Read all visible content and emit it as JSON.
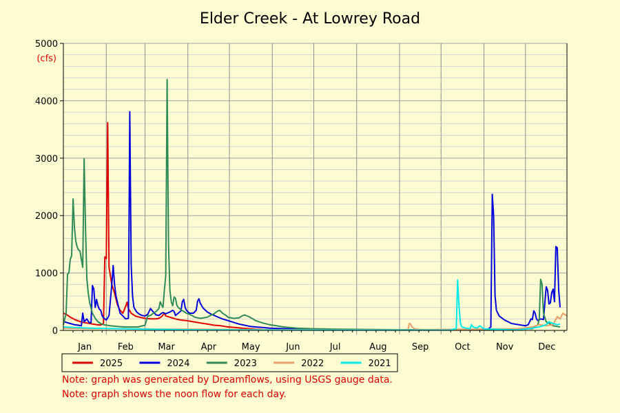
{
  "chart_data": {
    "type": "line",
    "title": "Elder Creek - At Lowrey Road",
    "ylabel": "(cfs)",
    "ylim": [
      0,
      5000
    ],
    "yticks": [
      0,
      1000,
      2000,
      3000,
      4000,
      5000
    ],
    "xlim": [
      1,
      365
    ],
    "months": [
      "Jan",
      "Feb",
      "Mar",
      "Apr",
      "May",
      "Jun",
      "Jul",
      "Aug",
      "Sep",
      "Oct",
      "Nov",
      "Dec"
    ],
    "grid": true,
    "legend_position": "bottom",
    "series": [
      {
        "name": "2025",
        "color": "#e00000",
        "points": [
          [
            1,
            300
          ],
          [
            3,
            280
          ],
          [
            6,
            230
          ],
          [
            10,
            180
          ],
          [
            15,
            140
          ],
          [
            20,
            120
          ],
          [
            25,
            100
          ],
          [
            28,
            95
          ],
          [
            30,
            120
          ],
          [
            31,
            1280
          ],
          [
            32,
            1250
          ],
          [
            33,
            3620
          ],
          [
            34,
            1100
          ],
          [
            36,
            800
          ],
          [
            38,
            650
          ],
          [
            40,
            450
          ],
          [
            42,
            350
          ],
          [
            44,
            300
          ],
          [
            46,
            420
          ],
          [
            47,
            490
          ],
          [
            48,
            380
          ],
          [
            50,
            300
          ],
          [
            53,
            250
          ],
          [
            56,
            230
          ],
          [
            60,
            210
          ],
          [
            64,
            200
          ],
          [
            68,
            200
          ],
          [
            70,
            210
          ],
          [
            72,
            240
          ],
          [
            74,
            300
          ],
          [
            75,
            250
          ],
          [
            78,
            230
          ],
          [
            82,
            200
          ],
          [
            86,
            180
          ],
          [
            90,
            170
          ],
          [
            95,
            150
          ],
          [
            100,
            130
          ],
          [
            105,
            110
          ],
          [
            110,
            90
          ],
          [
            115,
            80
          ],
          [
            120,
            60
          ],
          [
            125,
            50
          ],
          [
            130,
            40
          ],
          [
            135,
            30
          ],
          [
            140,
            20
          ],
          [
            145,
            15
          ]
        ]
      },
      {
        "name": "2024",
        "color": "#0000dd",
        "points": [
          [
            1,
            160
          ],
          [
            3,
            140
          ],
          [
            6,
            120
          ],
          [
            9,
            100
          ],
          [
            12,
            90
          ],
          [
            14,
            80
          ],
          [
            15,
            300
          ],
          [
            16,
            150
          ],
          [
            18,
            200
          ],
          [
            19,
            160
          ],
          [
            20,
            130
          ],
          [
            21,
            140
          ],
          [
            22,
            780
          ],
          [
            23,
            720
          ],
          [
            24,
            400
          ],
          [
            25,
            540
          ],
          [
            26,
            430
          ],
          [
            27,
            370
          ],
          [
            28,
            350
          ],
          [
            29,
            260
          ],
          [
            30,
            220
          ],
          [
            31,
            200
          ],
          [
            32,
            180
          ],
          [
            33,
            220
          ],
          [
            34,
            260
          ],
          [
            36,
            800
          ],
          [
            37,
            1130
          ],
          [
            38,
            800
          ],
          [
            39,
            600
          ],
          [
            40,
            500
          ],
          [
            42,
            300
          ],
          [
            44,
            250
          ],
          [
            46,
            200
          ],
          [
            48,
            210
          ],
          [
            49,
            3810
          ],
          [
            50,
            1150
          ],
          [
            51,
            600
          ],
          [
            52,
            400
          ],
          [
            54,
            320
          ],
          [
            56,
            280
          ],
          [
            58,
            260
          ],
          [
            60,
            250
          ],
          [
            62,
            280
          ],
          [
            64,
            380
          ],
          [
            65,
            350
          ],
          [
            66,
            320
          ],
          [
            68,
            270
          ],
          [
            70,
            260
          ],
          [
            72,
            300
          ],
          [
            73,
            310
          ],
          [
            75,
            290
          ],
          [
            78,
            320
          ],
          [
            80,
            350
          ],
          [
            81,
            330
          ],
          [
            82,
            260
          ],
          [
            84,
            300
          ],
          [
            86,
            340
          ],
          [
            87,
            500
          ],
          [
            88,
            540
          ],
          [
            89,
            400
          ],
          [
            90,
            350
          ],
          [
            92,
            300
          ],
          [
            95,
            300
          ],
          [
            97,
            350
          ],
          [
            98,
            510
          ],
          [
            99,
            550
          ],
          [
            100,
            470
          ],
          [
            102,
            390
          ],
          [
            105,
            320
          ],
          [
            108,
            280
          ],
          [
            112,
            240
          ],
          [
            116,
            200
          ],
          [
            120,
            170
          ],
          [
            124,
            140
          ],
          [
            128,
            110
          ],
          [
            132,
            90
          ],
          [
            136,
            70
          ],
          [
            140,
            60
          ],
          [
            145,
            50
          ],
          [
            150,
            40
          ],
          [
            160,
            30
          ],
          [
            170,
            25
          ],
          [
            180,
            20
          ],
          [
            190,
            15
          ],
          [
            200,
            12
          ],
          [
            220,
            10
          ],
          [
            240,
            8
          ],
          [
            260,
            6
          ],
          [
            280,
            6
          ],
          [
            295,
            8
          ],
          [
            300,
            10
          ],
          [
            305,
            15
          ],
          [
            308,
            20
          ],
          [
            310,
            60
          ],
          [
            311,
            2370
          ],
          [
            312,
            1980
          ],
          [
            313,
            600
          ],
          [
            314,
            350
          ],
          [
            316,
            250
          ],
          [
            320,
            180
          ],
          [
            325,
            120
          ],
          [
            330,
            100
          ],
          [
            335,
            80
          ],
          [
            337,
            100
          ],
          [
            339,
            200
          ],
          [
            340,
            190
          ],
          [
            341,
            340
          ],
          [
            342,
            300
          ],
          [
            343,
            200
          ],
          [
            344,
            170
          ],
          [
            346,
            200
          ],
          [
            348,
            190
          ],
          [
            350,
            760
          ],
          [
            351,
            700
          ],
          [
            352,
            460
          ],
          [
            353,
            480
          ],
          [
            354,
            660
          ],
          [
            355,
            720
          ],
          [
            356,
            500
          ],
          [
            357,
            1460
          ],
          [
            358,
            1440
          ],
          [
            359,
            700
          ],
          [
            360,
            400
          ]
        ]
      },
      {
        "name": "2023",
        "color": "#2e8b57",
        "points": [
          [
            1,
            100
          ],
          [
            2,
            200
          ],
          [
            3,
            300
          ],
          [
            4,
            980
          ],
          [
            5,
            1000
          ],
          [
            6,
            1240
          ],
          [
            7,
            1300
          ],
          [
            8,
            2290
          ],
          [
            9,
            1780
          ],
          [
            10,
            1550
          ],
          [
            11,
            1450
          ],
          [
            12,
            1400
          ],
          [
            13,
            1380
          ],
          [
            14,
            1240
          ],
          [
            15,
            1100
          ],
          [
            16,
            2990
          ],
          [
            17,
            1800
          ],
          [
            18,
            900
          ],
          [
            19,
            650
          ],
          [
            20,
            480
          ],
          [
            22,
            300
          ],
          [
            24,
            210
          ],
          [
            26,
            150
          ],
          [
            28,
            120
          ],
          [
            30,
            100
          ],
          [
            35,
            80
          ],
          [
            40,
            70
          ],
          [
            45,
            60
          ],
          [
            50,
            60
          ],
          [
            55,
            60
          ],
          [
            60,
            90
          ],
          [
            62,
            250
          ],
          [
            64,
            260
          ],
          [
            66,
            300
          ],
          [
            68,
            330
          ],
          [
            70,
            380
          ],
          [
            71,
            500
          ],
          [
            72,
            440
          ],
          [
            73,
            400
          ],
          [
            74,
            700
          ],
          [
            75,
            950
          ],
          [
            76,
            4370
          ],
          [
            77,
            1500
          ],
          [
            78,
            700
          ],
          [
            79,
            500
          ],
          [
            80,
            430
          ],
          [
            81,
            580
          ],
          [
            82,
            560
          ],
          [
            83,
            440
          ],
          [
            84,
            400
          ],
          [
            85,
            380
          ],
          [
            86,
            360
          ],
          [
            88,
            330
          ],
          [
            90,
            300
          ],
          [
            92,
            280
          ],
          [
            94,
            260
          ],
          [
            96,
            230
          ],
          [
            100,
            210
          ],
          [
            105,
            230
          ],
          [
            108,
            270
          ],
          [
            110,
            290
          ],
          [
            112,
            330
          ],
          [
            114,
            350
          ],
          [
            116,
            300
          ],
          [
            118,
            270
          ],
          [
            120,
            230
          ],
          [
            124,
            210
          ],
          [
            128,
            220
          ],
          [
            130,
            250
          ],
          [
            132,
            270
          ],
          [
            135,
            240
          ],
          [
            138,
            200
          ],
          [
            140,
            170
          ],
          [
            145,
            130
          ],
          [
            150,
            100
          ],
          [
            155,
            80
          ],
          [
            160,
            60
          ],
          [
            170,
            40
          ],
          [
            180,
            30
          ],
          [
            200,
            20
          ],
          [
            230,
            15
          ],
          [
            260,
            10
          ],
          [
            290,
            10
          ],
          [
            320,
            20
          ],
          [
            340,
            30
          ],
          [
            344,
            100
          ],
          [
            345,
            200
          ],
          [
            346,
            890
          ],
          [
            347,
            800
          ],
          [
            348,
            300
          ],
          [
            350,
            150
          ],
          [
            355,
            80
          ],
          [
            360,
            60
          ]
        ]
      },
      {
        "name": "2022",
        "color": "#e8a06a",
        "points": [
          [
            1,
            40
          ],
          [
            20,
            30
          ],
          [
            40,
            30
          ],
          [
            60,
            25
          ],
          [
            80,
            20
          ],
          [
            100,
            20
          ],
          [
            130,
            15
          ],
          [
            160,
            12
          ],
          [
            200,
            10
          ],
          [
            240,
            8
          ],
          [
            250,
            8
          ],
          [
            251,
            120
          ],
          [
            252,
            110
          ],
          [
            253,
            60
          ],
          [
            255,
            25
          ],
          [
            260,
            15
          ],
          [
            300,
            20
          ],
          [
            330,
            30
          ],
          [
            340,
            60
          ],
          [
            345,
            100
          ],
          [
            350,
            80
          ],
          [
            355,
            100
          ],
          [
            358,
            240
          ],
          [
            360,
            200
          ],
          [
            362,
            300
          ],
          [
            365,
            250
          ]
        ]
      },
      {
        "name": "2021",
        "color": "#00eaea",
        "points": [
          [
            1,
            60
          ],
          [
            10,
            50
          ],
          [
            20,
            40
          ],
          [
            40,
            30
          ],
          [
            60,
            20
          ],
          [
            80,
            15
          ],
          [
            100,
            10
          ],
          [
            120,
            8
          ],
          [
            150,
            6
          ],
          [
            200,
            5
          ],
          [
            250,
            5
          ],
          [
            280,
            5
          ],
          [
            285,
            30
          ],
          [
            286,
            880
          ],
          [
            287,
            400
          ],
          [
            288,
            120
          ],
          [
            289,
            60
          ],
          [
            292,
            40
          ],
          [
            295,
            30
          ],
          [
            296,
            100
          ],
          [
            297,
            60
          ],
          [
            300,
            40
          ],
          [
            302,
            80
          ],
          [
            303,
            60
          ],
          [
            305,
            30
          ],
          [
            310,
            20
          ],
          [
            320,
            15
          ],
          [
            330,
            10
          ],
          [
            340,
            40
          ],
          [
            345,
            60
          ],
          [
            350,
            100
          ],
          [
            352,
            150
          ],
          [
            355,
            120
          ],
          [
            358,
            100
          ],
          [
            360,
            110
          ]
        ]
      }
    ]
  },
  "notes": [
    "Note: graph was generated by Dreamflows, using USGS gauge data.",
    "Note: graph shows the noon flow for each day."
  ]
}
